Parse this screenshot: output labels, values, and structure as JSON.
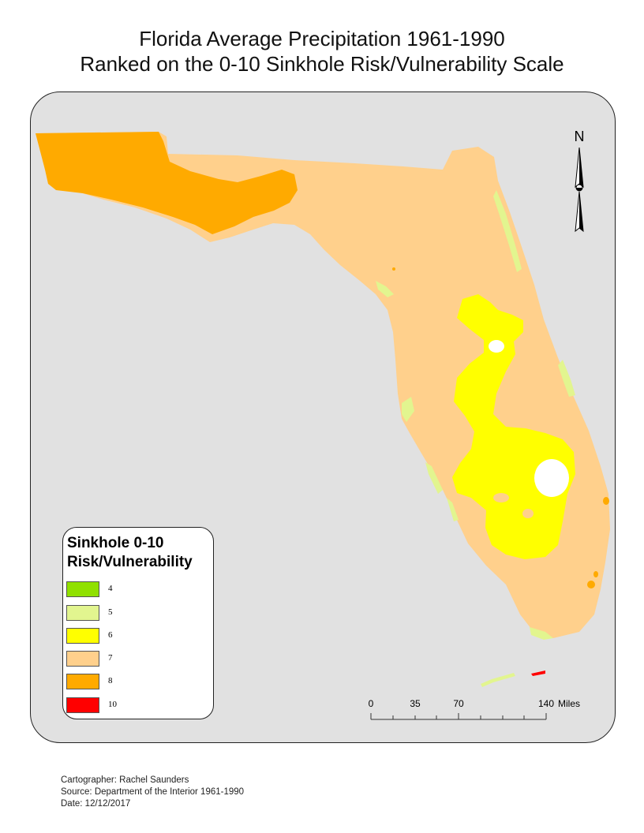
{
  "title_line1": "Florida Average Precipitation 1961-1990",
  "title_line2": "Ranked on the 0-10 Sinkhole Risk/Vulnerability Scale",
  "north_label": "N",
  "legend": {
    "title_line1": "Sinkhole 0-10",
    "title_line2": "Risk/Vulnerability",
    "items": [
      {
        "label": "4",
        "color": "#90e000"
      },
      {
        "label": "5",
        "color": "#e2f58f"
      },
      {
        "label": "6",
        "color": "#ffff00"
      },
      {
        "label": "7",
        "color": "#ffd08c"
      },
      {
        "label": "8",
        "color": "#ffaa00"
      },
      {
        "label": "10",
        "color": "#ff0000"
      }
    ]
  },
  "scale_bar": {
    "ticks": [
      "0",
      "35",
      "70",
      "140"
    ],
    "unit": "Miles"
  },
  "footer": {
    "cartographer": "Cartographer: Rachel Saunders",
    "source": "Source: Department of the Interior 1961-1990",
    "date": "Date: 12/12/2017"
  },
  "colors": {
    "background_water": "#e1e1e1",
    "risk_4": "#90e000",
    "risk_5": "#e2f58f",
    "risk_6": "#ffff00",
    "risk_7": "#ffd08c",
    "risk_8": "#ffaa00",
    "risk_10": "#ff0000"
  }
}
